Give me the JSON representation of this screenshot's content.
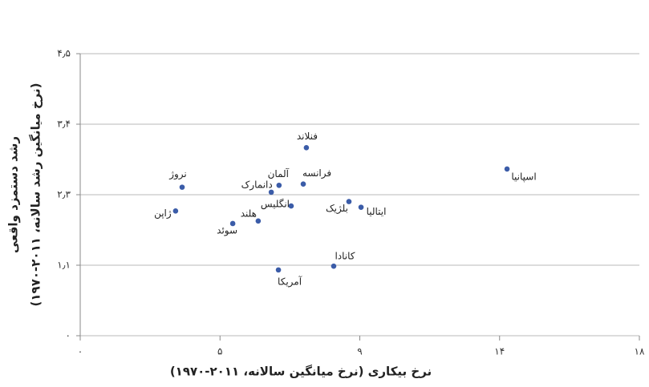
{
  "chart_data": {
    "type": "scatter",
    "x_label": "نرخ بیکاری (نرخ میانگین سالانه، ۲۰۱۱-۱۹۷۰)",
    "y_label": [
      "رشد دستمزد واقعی",
      "(نرخ میانگین رشد سالانه، ۲۰۱۱-۱۹۷۰)"
    ],
    "xlim": [
      0,
      18
    ],
    "xticks": [
      {
        "value": 0,
        "label": "۰"
      },
      {
        "value": 4.5,
        "label": "۵"
      },
      {
        "value": 9,
        "label": "۹"
      },
      {
        "value": 13.5,
        "label": "۱۴"
      },
      {
        "value": 18,
        "label": "۱۸"
      }
    ],
    "ylim": [
      0,
      4.5
    ],
    "yticks": [
      {
        "value": 0,
        "label": "۰"
      },
      {
        "value": 1.125,
        "label": "۱٫۱"
      },
      {
        "value": 2.25,
        "label": "۲٫۳"
      },
      {
        "value": 3.375,
        "label": "۳٫۴"
      },
      {
        "value": 4.5,
        "label": "۴٫۵"
      }
    ],
    "grid": true,
    "color": "#3b5ca8",
    "labels": [
      "فنلاند",
      "اسپانیا",
      "نروژ",
      "ژاپن",
      "آلمان",
      "فرانسه",
      "دانمارک",
      "انگلیس",
      "بلژیک",
      "ایتالیا",
      "هلند",
      "سوئد",
      "کانادا",
      "آمریکا"
    ],
    "x": [
      7.28,
      13.74,
      3.28,
      3.07,
      6.4,
      7.18,
      6.15,
      6.79,
      8.65,
      9.04,
      5.73,
      4.91,
      8.16,
      6.38
    ],
    "y": [
      3.0,
      2.66,
      2.37,
      1.99,
      2.4,
      2.42,
      2.29,
      2.07,
      2.14,
      2.05,
      1.83,
      1.79,
      1.11,
      1.05
    ]
  }
}
